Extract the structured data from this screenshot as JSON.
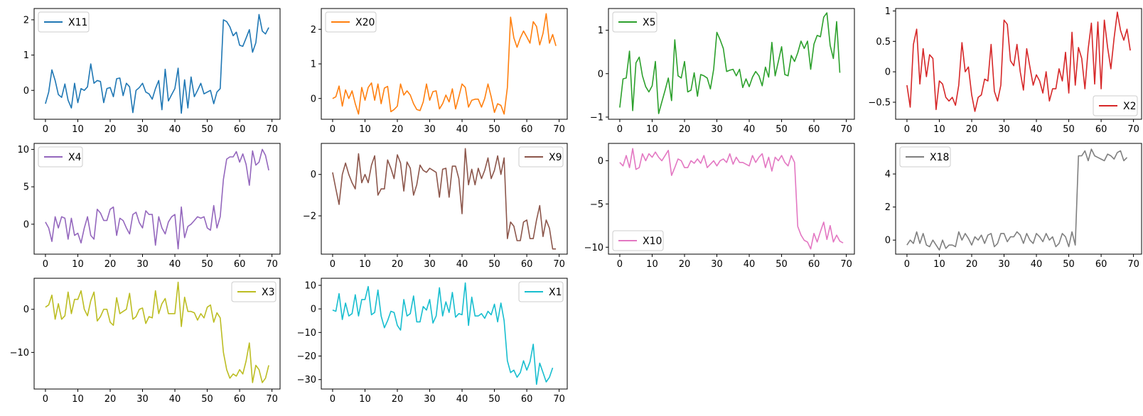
{
  "chart_data": [
    {
      "type": "line",
      "legend_loc": "upper-left",
      "series": [
        {
          "name": "X11",
          "color": "#1f77b4",
          "values": [
            -0.38,
            -0.05,
            0.58,
            0.28,
            -0.12,
            -0.2,
            0.18,
            -0.28,
            -0.5,
            0.2,
            -0.35,
            0.05,
            0.0,
            0.1,
            0.75,
            0.2,
            0.28,
            0.25,
            -0.35,
            0.05,
            0.08,
            -0.18,
            0.33,
            0.35,
            -0.15,
            0.2,
            0.1,
            -0.63,
            0.0,
            0.08,
            0.2,
            -0.05,
            -0.1,
            -0.25,
            0.05,
            0.28,
            -0.55,
            0.6,
            -0.3,
            -0.12,
            0.05,
            0.63,
            -0.65,
            0.3,
            -0.5,
            0.38,
            -0.18,
            0.0,
            0.2,
            -0.1,
            -0.05,
            0.0,
            -0.38,
            -0.05,
            0.05,
            2.0,
            1.95,
            1.8,
            1.55,
            1.65,
            1.28,
            1.25,
            1.48,
            1.72,
            1.08,
            1.35,
            2.15,
            1.68,
            1.6,
            1.78
          ]
        }
      ],
      "x_ticks": [
        0,
        10,
        20,
        30,
        40,
        50,
        60,
        70
      ],
      "y_ticks": [
        0,
        1,
        2
      ],
      "ylim": [
        -0.82,
        2.32
      ]
    },
    {
      "type": "line",
      "legend_loc": "upper-left",
      "series": [
        {
          "name": "X20",
          "color": "#ff7f0e",
          "values": [
            0.0,
            0.05,
            0.36,
            -0.22,
            0.25,
            0.0,
            0.22,
            -0.15,
            -0.45,
            0.32,
            -0.05,
            0.32,
            0.45,
            -0.05,
            0.42,
            -0.15,
            0.3,
            0.35,
            -0.38,
            -0.32,
            -0.22,
            0.42,
            0.1,
            0.22,
            0.1,
            -0.15,
            -0.32,
            -0.35,
            -0.1,
            0.42,
            -0.05,
            0.2,
            0.22,
            -0.3,
            -0.15,
            0.1,
            -0.1,
            0.28,
            -0.3,
            0.05,
            0.42,
            0.32,
            -0.25,
            -0.05,
            -0.02,
            -0.02,
            -0.25,
            0.0,
            0.42,
            0.05,
            -0.4,
            -0.15,
            -0.2,
            -0.45,
            0.32,
            2.35,
            1.75,
            1.48,
            1.75,
            1.95,
            1.78,
            1.6,
            2.22,
            2.08,
            1.55,
            1.88,
            2.45,
            1.6,
            1.85,
            1.52
          ]
        }
      ],
      "x_ticks": [
        0,
        10,
        20,
        30,
        40,
        50,
        60,
        70
      ],
      "y_ticks": [
        0,
        1,
        2
      ],
      "ylim": [
        -0.6,
        2.6
      ]
    },
    {
      "type": "line",
      "legend_loc": "upper-left",
      "series": [
        {
          "name": "X5",
          "color": "#2ca02c",
          "values": [
            -0.78,
            -0.12,
            -0.1,
            0.52,
            -0.85,
            0.25,
            0.38,
            -0.05,
            -0.3,
            -0.42,
            -0.28,
            0.28,
            -0.92,
            -0.65,
            -0.38,
            -0.1,
            -0.62,
            0.78,
            -0.05,
            -0.1,
            0.28,
            -0.42,
            -0.38,
            0.02,
            -0.52,
            -0.02,
            -0.05,
            -0.1,
            -0.35,
            0.1,
            0.95,
            0.78,
            0.58,
            0.05,
            0.08,
            0.1,
            -0.05,
            0.1,
            -0.32,
            -0.12,
            -0.3,
            -0.08,
            0.05,
            -0.05,
            -0.28,
            0.15,
            -0.08,
            0.72,
            -0.05,
            0.28,
            0.62,
            -0.02,
            -0.05,
            0.42,
            0.28,
            0.48,
            0.75,
            0.58,
            0.75,
            0.1,
            0.68,
            0.88,
            0.85,
            1.3,
            1.4,
            0.65,
            0.35,
            1.2,
            0.02
          ]
        }
      ],
      "x_ticks": [
        0,
        10,
        20,
        30,
        40,
        50,
        60,
        70
      ],
      "y_ticks": [
        -1,
        0,
        1
      ],
      "ylim": [
        -1.05,
        1.5
      ]
    },
    {
      "type": "line",
      "legend_loc": "lower-right",
      "series": [
        {
          "name": "X2",
          "color": "#d62728",
          "values": [
            -0.22,
            -0.58,
            0.45,
            0.7,
            -0.2,
            0.38,
            -0.08,
            0.28,
            0.22,
            -0.62,
            -0.15,
            -0.2,
            -0.42,
            -0.48,
            -0.42,
            -0.55,
            -0.22,
            0.48,
            0.0,
            0.08,
            -0.38,
            -0.65,
            -0.42,
            -0.38,
            -0.12,
            -0.15,
            0.45,
            -0.32,
            -0.48,
            -0.22,
            0.85,
            0.78,
            0.18,
            0.1,
            0.45,
            0.0,
            -0.3,
            0.38,
            0.08,
            -0.22,
            -0.05,
            -0.15,
            -0.35,
            0.0,
            -0.48,
            -0.28,
            -0.28,
            0.05,
            -0.15,
            0.32,
            -0.35,
            0.65,
            -0.22,
            0.4,
            0.22,
            -0.28,
            0.38,
            0.8,
            -0.2,
            0.82,
            -0.28,
            0.85,
            0.4,
            0.05,
            0.55,
            0.98,
            0.68,
            0.52,
            0.7,
            0.35
          ]
        }
      ],
      "x_ticks": [
        0,
        10,
        20,
        30,
        40,
        50,
        60,
        70
      ],
      "y_ticks": [
        -0.5,
        0.0,
        0.5,
        1.0
      ],
      "ylim": [
        -0.78,
        1.04
      ]
    },
    {
      "type": "line",
      "legend_loc": "upper-left",
      "series": [
        {
          "name": "X4",
          "color": "#9467bd",
          "values": [
            0.3,
            -0.5,
            -2.3,
            1.0,
            -0.5,
            1.0,
            0.8,
            -2.0,
            0.8,
            -1.5,
            -1.2,
            -2.5,
            -0.5,
            1.0,
            -1.5,
            -2.0,
            2.0,
            1.5,
            0.5,
            0.5,
            2.0,
            2.3,
            -1.5,
            0.8,
            0.5,
            -0.5,
            -1.3,
            1.3,
            1.6,
            0.2,
            -0.5,
            1.8,
            1.3,
            1.3,
            -2.8,
            1.0,
            -0.5,
            -1.3,
            0.3,
            1.0,
            1.3,
            -3.3,
            2.3,
            -1.8,
            -0.3,
            0.0,
            0.5,
            1.0,
            0.8,
            1.0,
            -0.5,
            -0.8,
            2.5,
            -0.5,
            1.0,
            6.0,
            8.7,
            9.0,
            9.0,
            9.7,
            8.3,
            9.4,
            8.0,
            5.2,
            9.8,
            7.9,
            8.3,
            10.0,
            9.2,
            7.2
          ]
        }
      ],
      "x_ticks": [
        0,
        10,
        20,
        30,
        40,
        50,
        60,
        70
      ],
      "y_ticks": [
        0,
        5,
        10
      ],
      "ylim": [
        -4.0,
        10.8
      ]
    },
    {
      "type": "line",
      "legend_loc": "upper-right",
      "series": [
        {
          "name": "X9",
          "color": "#8c564b",
          "values": [
            0.1,
            -0.7,
            -1.45,
            0.0,
            0.55,
            0.0,
            -0.4,
            -0.7,
            1.0,
            -0.4,
            0.0,
            -0.4,
            0.45,
            0.9,
            -1.0,
            -0.7,
            -0.7,
            0.7,
            0.3,
            -0.2,
            0.95,
            0.55,
            -0.8,
            0.6,
            0.3,
            -1.0,
            -0.5,
            0.45,
            0.2,
            0.1,
            0.3,
            0.2,
            0.1,
            -1.1,
            0.25,
            0.3,
            -1.1,
            0.4,
            0.4,
            -0.2,
            -1.9,
            1.25,
            -0.5,
            0.25,
            -0.5,
            0.3,
            -0.2,
            0.2,
            0.8,
            -0.2,
            0.2,
            0.9,
            0.0,
            0.8,
            -3.1,
            -2.3,
            -2.5,
            -3.2,
            -3.2,
            -2.3,
            -2.2,
            -3.1,
            -3.1,
            -2.2,
            -1.5,
            -3.0,
            -2.2,
            -2.6,
            -3.6,
            -3.6
          ]
        }
      ],
      "x_ticks": [
        0,
        10,
        20,
        30,
        40,
        50,
        60,
        70
      ],
      "y_ticks": [
        -2,
        0
      ],
      "ylim": [
        -3.85,
        1.5
      ]
    },
    {
      "type": "line",
      "legend_loc": "lower-left",
      "series": [
        {
          "name": "X10",
          "color": "#e377c2",
          "values": [
            -0.2,
            -0.6,
            0.6,
            -0.8,
            1.4,
            -1.0,
            -0.8,
            0.8,
            0.0,
            0.8,
            0.4,
            1.0,
            0.4,
            0.0,
            0.6,
            1.2,
            -1.7,
            -0.8,
            0.2,
            0.0,
            -0.8,
            -0.8,
            0.0,
            -0.3,
            0.2,
            -0.3,
            0.6,
            -0.8,
            -0.4,
            0.0,
            -0.6,
            0.0,
            0.2,
            -0.2,
            0.8,
            -0.4,
            0.4,
            -0.2,
            -0.2,
            -0.4,
            -0.6,
            0.6,
            -0.2,
            0.4,
            0.8,
            -0.8,
            0.4,
            -1.2,
            0.4,
            0.0,
            0.6,
            -0.2,
            -0.6,
            0.6,
            -0.2,
            -7.6,
            -8.6,
            -9.2,
            -9.4,
            -10.2,
            -8.4,
            -9.4,
            -8.2,
            -7.1,
            -9.1,
            -7.5,
            -9.4,
            -8.6,
            -9.3,
            -9.5
          ]
        }
      ],
      "x_ticks": [
        0,
        10,
        20,
        30,
        40,
        50,
        60,
        70
      ],
      "y_ticks": [
        -10,
        -5,
        0
      ],
      "ylim": [
        -10.8,
        2.0
      ]
    },
    {
      "type": "line",
      "legend_loc": "upper-left",
      "series": [
        {
          "name": "X18",
          "color": "#7f7f7f",
          "values": [
            -0.3,
            0.0,
            -0.2,
            0.5,
            -0.2,
            0.4,
            -0.3,
            -0.4,
            0.0,
            -0.3,
            -0.6,
            0.0,
            -0.5,
            -0.3,
            -0.3,
            -0.4,
            0.5,
            0.0,
            0.4,
            0.1,
            -0.3,
            0.2,
            0.0,
            0.3,
            -0.2,
            0.3,
            0.4,
            -0.4,
            -0.2,
            0.4,
            0.4,
            -0.1,
            0.2,
            0.2,
            0.5,
            0.3,
            -0.2,
            0.4,
            0.0,
            -0.2,
            0.4,
            0.2,
            -0.1,
            0.4,
            0.0,
            0.2,
            -0.4,
            -0.2,
            0.4,
            0.2,
            -0.4,
            0.5,
            -0.3,
            5.1,
            5.1,
            5.4,
            4.8,
            5.5,
            5.1,
            5.0,
            4.9,
            4.8,
            5.2,
            5.1,
            4.9,
            5.3,
            5.4,
            4.8,
            5.0
          ]
        }
      ],
      "x_ticks": [
        0,
        10,
        20,
        30,
        40,
        50,
        60,
        70
      ],
      "y_ticks": [
        0,
        2,
        4
      ],
      "ylim": [
        -0.85,
        5.85
      ]
    },
    {
      "type": "line",
      "legend_loc": "upper-right",
      "series": [
        {
          "name": "X3",
          "color": "#bcbd22",
          "values": [
            0.5,
            1.0,
            3.3,
            -2.3,
            1.3,
            -2.3,
            -1.5,
            4.0,
            -1.0,
            2.3,
            2.3,
            4.3,
            0.0,
            -1.5,
            2.0,
            4.0,
            -2.7,
            -1.7,
            0.0,
            0.0,
            -3.0,
            -3.7,
            2.7,
            -1.0,
            -0.5,
            0.0,
            3.7,
            -2.3,
            -1.7,
            0.0,
            0.3,
            -3.3,
            -1.7,
            -2.0,
            4.3,
            -1.0,
            1.3,
            2.5,
            -1.0,
            -1.0,
            -1.0,
            6.3,
            -4.0,
            2.8,
            -0.5,
            -0.5,
            -0.8,
            -2.5,
            -1.0,
            -2.0,
            0.5,
            1.0,
            -3.0,
            -0.8,
            -2.0,
            -10.0,
            -14.0,
            -16.0,
            -15.0,
            -15.5,
            -14.0,
            -15.0,
            -12.0,
            -7.8,
            -17.0,
            -13.0,
            -14.0,
            -17.0,
            -16.0,
            -13.0
          ]
        }
      ],
      "x_ticks": [
        0,
        10,
        20,
        30,
        40,
        50,
        60,
        70
      ],
      "y_ticks": [
        -10,
        0
      ],
      "ylim": [
        -18.5,
        7.2
      ]
    },
    {
      "type": "line",
      "legend_loc": "upper-right",
      "series": [
        {
          "name": "X1",
          "color": "#17becf",
          "values": [
            -0.5,
            -1.0,
            6.5,
            -4.5,
            2.5,
            -3.0,
            -2.0,
            6.0,
            -3.0,
            4.0,
            4.0,
            9.5,
            -2.5,
            -1.5,
            8.0,
            -3.0,
            -8.0,
            -5.0,
            -1.0,
            -1.5,
            -7.0,
            -9.0,
            4.0,
            -3.0,
            -2.0,
            5.5,
            -5.5,
            -5.5,
            1.0,
            -0.5,
            4.0,
            -6.0,
            -3.0,
            9.0,
            -3.0,
            3.0,
            -1.5,
            7.0,
            -3.5,
            -2.0,
            -2.5,
            11.0,
            -7.0,
            5.0,
            -3.0,
            -3.0,
            -2.0,
            -4.0,
            -1.0,
            -2.5,
            2.0,
            -5.5,
            2.5,
            -5.0,
            -22.0,
            -27.0,
            -26.0,
            -29.0,
            -27.0,
            -22.0,
            -26.0,
            -22.5,
            -15.0,
            -32.0,
            -23.0,
            -27.0,
            -31.0,
            -29.0,
            -25.0
          ]
        }
      ],
      "x_ticks": [
        0,
        10,
        20,
        30,
        40,
        50,
        60,
        70
      ],
      "y_ticks": [
        -30,
        -20,
        -10,
        0,
        10
      ],
      "ylim": [
        -34.0,
        13.0
      ]
    }
  ]
}
